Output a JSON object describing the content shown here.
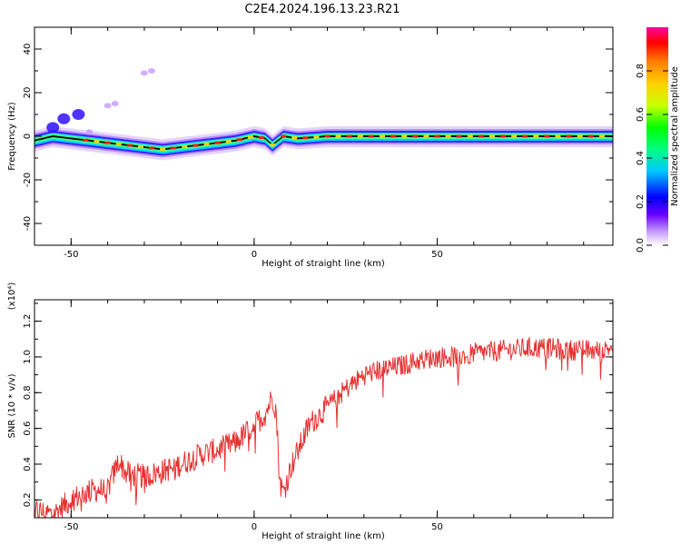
{
  "figure": {
    "title": "C2E4.2024.196.13.23.R21"
  },
  "chart_data": [
    {
      "type": "heatmap",
      "title": "C2E4.2024.196.13.23.R21",
      "xlabel": "Height of straight line (km)",
      "ylabel": "Frequency (Hz)",
      "xlim": [
        -60,
        98
      ],
      "ylim": [
        -50,
        50
      ],
      "x_ticks": [
        -50,
        0,
        50
      ],
      "y_ticks": [
        40,
        20,
        0,
        -20,
        -40
      ],
      "ridge": {
        "x": [
          -60,
          -55,
          -50,
          -45,
          -40,
          -35,
          -30,
          -25,
          -20,
          -15,
          -10,
          -5,
          0,
          3,
          5,
          8,
          12,
          20,
          30,
          40,
          50,
          60,
          70,
          80,
          90,
          97
        ],
        "frequency": [
          -2,
          0,
          -1,
          -2,
          -3,
          -4,
          -5,
          -6,
          -5,
          -4,
          -3,
          -2,
          0,
          -1,
          -4,
          0,
          -1,
          0,
          0,
          0,
          0,
          0,
          0,
          0,
          0,
          0
        ]
      },
      "colorbar": {
        "label": "Normalized spectral amplitude",
        "range": [
          0,
          1
        ],
        "ticks": [
          "0.0",
          "0.2",
          "0.4",
          "0.6",
          "0.8"
        ],
        "colors": [
          "#ffffff",
          "#c9a0ff",
          "#6a00ff",
          "#0000ff",
          "#00c8ff",
          "#00ff80",
          "#00ff00",
          "#c8ff00",
          "#ffd200",
          "#ff8000",
          "#ff0000",
          "#ff00a0"
        ]
      },
      "grid": false
    },
    {
      "type": "line",
      "xlabel": "Height of straight line (km)",
      "ylabel": "SNR (10 * v/v)",
      "y_scale_note": "(x10⁴)",
      "xlim": [
        -60,
        98
      ],
      "ylim": [
        0.1,
        1.32
      ],
      "x_ticks": [
        -50,
        0,
        50
      ],
      "y_ticks": [
        "0.2",
        "0.4",
        "0.6",
        "0.8",
        "1.0",
        "1.2"
      ],
      "series": [
        {
          "color": "#e83030",
          "x": [
            -60,
            -55,
            -50,
            -45,
            -40,
            -37,
            -35,
            -30,
            -25,
            -20,
            -15,
            -10,
            -5,
            -2,
            0,
            3,
            5,
            6,
            7,
            8,
            10,
            15,
            20,
            25,
            30,
            35,
            40,
            45,
            50,
            55,
            60,
            65,
            70,
            75,
            80,
            85,
            90,
            95,
            98
          ],
          "values": [
            0.14,
            0.12,
            0.2,
            0.25,
            0.26,
            0.42,
            0.35,
            0.33,
            0.36,
            0.4,
            0.45,
            0.48,
            0.52,
            0.58,
            0.62,
            0.68,
            0.78,
            0.7,
            0.3,
            0.24,
            0.38,
            0.62,
            0.72,
            0.82,
            0.9,
            0.93,
            0.95,
            0.98,
            1.0,
            1.0,
            1.02,
            1.03,
            1.04,
            1.05,
            1.05,
            1.04,
            1.04,
            1.03,
            1.06
          ]
        }
      ],
      "grid": false
    }
  ]
}
